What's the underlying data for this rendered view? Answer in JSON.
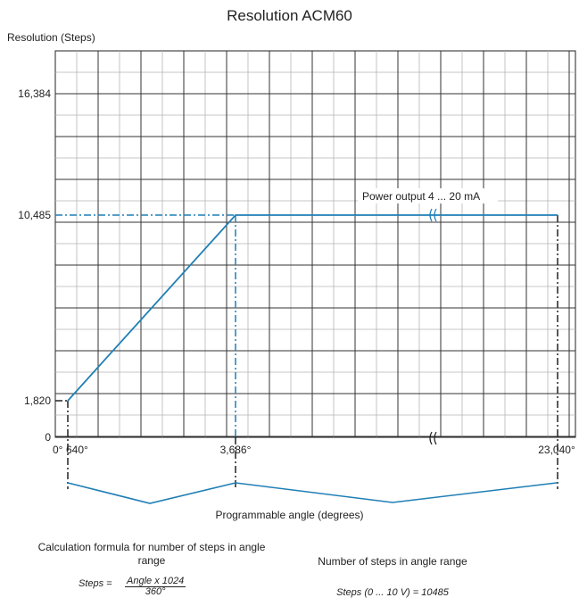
{
  "chart_data": {
    "type": "line",
    "title": "Resolution ACM60",
    "ylabel": "Resolution (Steps)",
    "xlabel": "Programmable angle (degrees)",
    "y_ticks": [
      "16,384",
      "10,485",
      "1,820",
      "0"
    ],
    "x_ticks": [
      "0°",
      "640°",
      "3,686°",
      "23,040°"
    ],
    "series": [
      {
        "x": [
          640,
          3686,
          23040
        ],
        "y": [
          1820,
          10485,
          10485
        ]
      }
    ],
    "annotation": "Power output 4 ... 20 mA",
    "color": "#1f7fb5"
  },
  "formula": {
    "left_title": "Calculation formula for number of steps in angle range",
    "left_eq_lhs": "Steps =",
    "left_eq_num": "Angle x 1024",
    "left_eq_den": "360°",
    "right_title": "Number of steps in angle range",
    "right_eq": "Steps (0 ... 10 V) = 10485"
  }
}
